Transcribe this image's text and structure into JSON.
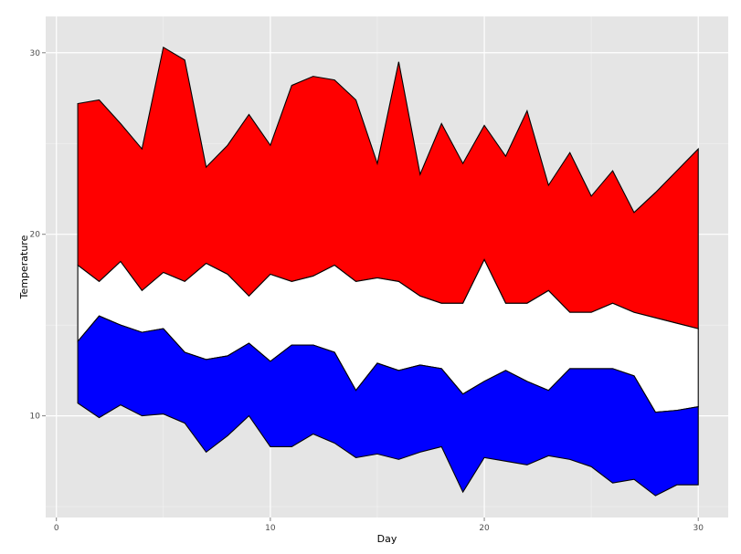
{
  "chart_data": {
    "type": "area",
    "xlabel": "Day",
    "ylabel": "Temperature",
    "xlim": [
      -0.5,
      31.4
    ],
    "ylim": [
      4.4,
      32.0
    ],
    "x_ticks": [
      0,
      10,
      20,
      30
    ],
    "y_ticks": [
      10,
      20,
      30
    ],
    "grid": true,
    "legend": "none",
    "x": [
      1,
      2,
      3,
      4,
      5,
      6,
      7,
      8,
      9,
      10,
      11,
      12,
      13,
      14,
      15,
      16,
      17,
      18,
      19,
      20,
      21,
      22,
      23,
      24,
      25,
      26,
      27,
      28,
      29,
      30
    ],
    "series": [
      {
        "color": "#ff0000",
        "lower": [
          18.3,
          17.4,
          18.5,
          16.9,
          17.9,
          17.4,
          18.4,
          17.8,
          16.6,
          17.8,
          17.4,
          17.7,
          18.3,
          17.4,
          17.6,
          17.4,
          16.6,
          16.2,
          16.2,
          18.6,
          16.2,
          16.2,
          16.9,
          15.7,
          15.7,
          16.2,
          15.7,
          15.4,
          15.1,
          14.8
        ],
        "upper": [
          27.2,
          27.4,
          26.1,
          24.7,
          30.3,
          29.6,
          23.7,
          24.9,
          26.6,
          24.9,
          28.2,
          28.7,
          28.5,
          27.4,
          23.9,
          29.5,
          23.3,
          26.1,
          23.9,
          26.0,
          24.3,
          26.8,
          22.7,
          24.5,
          22.1,
          23.5,
          21.2,
          22.3,
          23.5,
          24.7
        ]
      },
      {
        "color": "#ffffff",
        "lower": [
          14.1,
          15.5,
          15.0,
          14.6,
          14.8,
          13.5,
          13.1,
          13.3,
          14.0,
          13.0,
          13.9,
          13.9,
          13.5,
          11.4,
          12.9,
          12.5,
          12.8,
          12.6,
          11.2,
          11.9,
          12.5,
          11.9,
          11.4,
          12.6,
          12.6,
          12.6,
          12.2,
          10.2,
          10.3,
          10.5
        ],
        "upper": [
          18.3,
          17.4,
          18.5,
          16.9,
          17.9,
          17.4,
          18.4,
          17.8,
          16.6,
          17.8,
          17.4,
          17.7,
          18.3,
          17.4,
          17.6,
          17.4,
          16.6,
          16.2,
          16.2,
          18.6,
          16.2,
          16.2,
          16.9,
          15.7,
          15.7,
          16.2,
          15.7,
          15.4,
          15.1,
          14.8
        ]
      },
      {
        "color": "#0000ff",
        "lower": [
          10.7,
          9.9,
          10.6,
          10.0,
          10.1,
          9.6,
          8.0,
          8.9,
          10.0,
          8.3,
          8.3,
          9.0,
          8.5,
          7.7,
          7.9,
          7.6,
          8.0,
          8.3,
          5.8,
          7.7,
          7.5,
          7.3,
          7.8,
          7.6,
          7.2,
          6.3,
          6.5,
          5.6,
          6.2,
          6.2
        ],
        "upper": [
          14.1,
          15.5,
          15.0,
          14.6,
          14.8,
          13.5,
          13.1,
          13.3,
          14.0,
          13.0,
          13.9,
          13.9,
          13.5,
          11.4,
          12.9,
          12.5,
          12.8,
          12.6,
          11.2,
          11.9,
          12.5,
          11.9,
          11.4,
          12.6,
          12.6,
          12.6,
          12.2,
          10.2,
          10.3,
          10.5
        ]
      }
    ],
    "colors": {
      "panel": "#e5e5e5",
      "grid_major": "#ffffff",
      "grid_minor": "#f2f2f2",
      "outline": "#000000",
      "tick_mark": "#7f7f7f"
    }
  }
}
